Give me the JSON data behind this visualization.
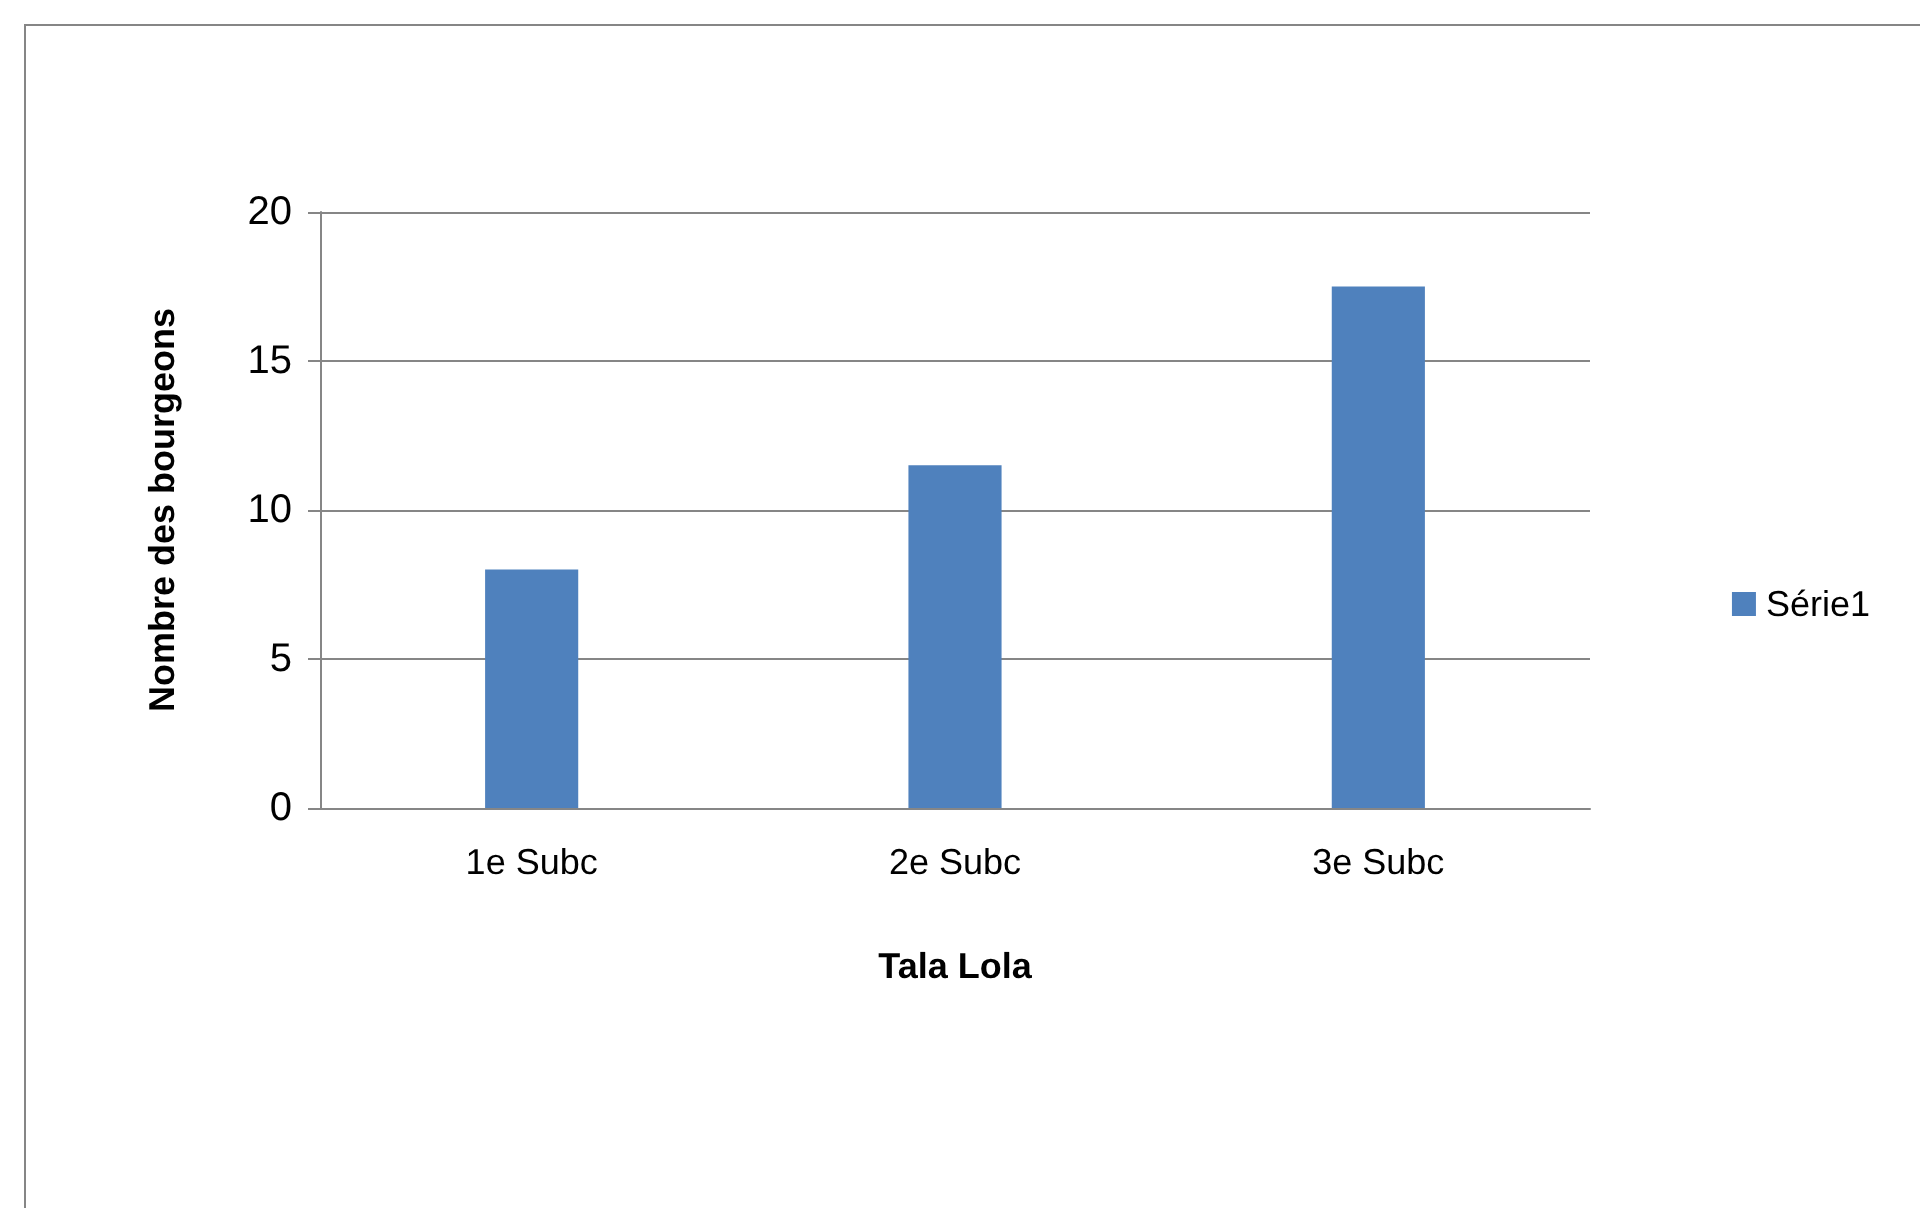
{
  "chart_data": {
    "type": "bar",
    "xlabel": "Tala Lola",
    "ylabel": "Nombre des bourgeons",
    "categories": [
      "1e Subc",
      "2e Subc",
      "3e Subc"
    ],
    "series": [
      {
        "name": "Série1",
        "color": "#4f81bd",
        "values": [
          8,
          11.5,
          17.5
        ]
      }
    ],
    "ylim": [
      0,
      20
    ],
    "yticks": [
      0,
      5,
      10,
      15,
      20
    ],
    "grid": "y",
    "legend": "right"
  }
}
